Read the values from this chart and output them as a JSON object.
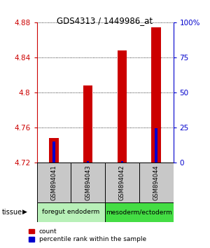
{
  "title": "GDS4313 / 1449986_at",
  "samples": [
    "GSM894041",
    "GSM894043",
    "GSM894042",
    "GSM894044"
  ],
  "red_values": [
    4.748,
    4.808,
    4.848,
    4.874
  ],
  "blue_values": [
    4.744,
    4.7215,
    4.7215,
    4.759
  ],
  "y_min": 4.72,
  "y_max": 4.88,
  "y_ticks": [
    4.72,
    4.76,
    4.8,
    4.84,
    4.88
  ],
  "right_y_ticks": [
    0,
    25,
    50,
    75,
    100
  ],
  "right_y_labels": [
    "0",
    "25",
    "50",
    "75",
    "100%"
  ],
  "tissue_groups": [
    {
      "label": "foregut endoderm",
      "samples": [
        0,
        1
      ],
      "color": "#b8f0b8"
    },
    {
      "label": "mesoderm/ectoderm",
      "samples": [
        2,
        3
      ],
      "color": "#44dd44"
    }
  ],
  "red_bar_width": 0.28,
  "blue_bar_width": 0.07,
  "red_color": "#cc0000",
  "blue_color": "#0000cc",
  "left_axis_color": "#cc0000",
  "right_axis_color": "#0000cc",
  "sample_box_color": "#c8c8c8",
  "legend_red_label": "count",
  "legend_blue_label": "percentile rank within the sample",
  "tissue_label": "tissue",
  "bg_color": "#ffffff"
}
